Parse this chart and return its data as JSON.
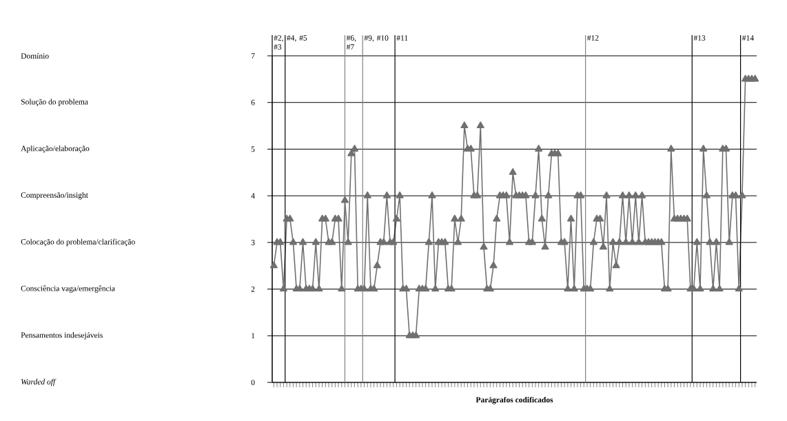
{
  "chart_data": {
    "type": "line",
    "xlabel": "Parágrafos codificados",
    "categories": [
      null,
      null,
      null,
      null,
      null,
      null,
      null,
      null,
      null,
      null,
      null,
      null,
      null,
      null,
      null,
      null,
      null,
      null,
      null,
      null,
      null,
      null,
      null,
      null,
      null,
      null,
      null,
      null,
      null,
      null,
      null,
      null,
      null,
      null,
      null,
      null,
      null,
      null,
      null,
      null,
      null,
      null,
      null,
      null,
      null,
      null,
      null,
      null,
      null,
      null,
      null,
      null,
      null,
      null,
      null,
      null,
      null,
      null,
      null,
      null,
      null,
      null,
      null,
      null,
      null,
      null,
      null,
      null,
      null,
      null,
      null,
      null,
      null,
      null,
      null,
      null,
      null,
      null,
      null,
      null,
      null,
      null,
      null,
      null,
      null,
      null,
      null,
      null,
      null,
      null,
      null,
      null,
      null,
      null,
      null,
      null,
      null,
      null,
      null,
      null,
      null,
      null,
      null,
      null,
      null,
      null,
      null,
      null,
      null,
      null,
      null,
      null,
      null,
      null,
      null,
      null,
      null,
      null,
      null,
      null,
      null,
      null,
      null,
      null,
      null,
      null,
      null,
      null,
      null,
      null,
      null,
      null,
      null,
      null,
      null,
      null,
      null,
      null,
      null,
      null,
      null,
      null,
      null,
      null,
      null,
      null,
      null,
      null,
      null,
      null
    ],
    "values": [
      2.5,
      3,
      3,
      2,
      3.5,
      3.5,
      3,
      2,
      2,
      3,
      2,
      2,
      2,
      3,
      2,
      3.5,
      3.5,
      3,
      3,
      3.5,
      3.5,
      2,
      3.9,
      3,
      4.9,
      5,
      2,
      2,
      2,
      4,
      2,
      2,
      2.5,
      3,
      3,
      4,
      3,
      3,
      3.5,
      4,
      2,
      2,
      1,
      1,
      1,
      2,
      2,
      2,
      3,
      4,
      2,
      3,
      3,
      3,
      2,
      2,
      3.5,
      3,
      3.5,
      5.5,
      5,
      5,
      4,
      4,
      5.5,
      2.9,
      2,
      2,
      2.5,
      3.5,
      4,
      4,
      4,
      3,
      4.5,
      4,
      4,
      4,
      4,
      3,
      3,
      4,
      5,
      3.5,
      2.9,
      4,
      4.9,
      4.9,
      4.9,
      3,
      3,
      2,
      3.5,
      2,
      4,
      4,
      2,
      2,
      2,
      3,
      3.5,
      3.5,
      2.9,
      4,
      2,
      3,
      2.5,
      3,
      4,
      3,
      4,
      3,
      4,
      3,
      4,
      3,
      3,
      3,
      3,
      3,
      3,
      2,
      2,
      5,
      3.5,
      3.5,
      3.5,
      3.5,
      3.5,
      2,
      2,
      3,
      2,
      5,
      4,
      3,
      2,
      3,
      2,
      5,
      5,
      3,
      4,
      4,
      2,
      4,
      6.5,
      6.5,
      6.5,
      6.5
    ],
    "color": "#707070",
    "marker": "triangle",
    "ylim": [
      0,
      7
    ],
    "yticks": [
      0,
      1,
      2,
      3,
      4,
      5,
      6,
      7
    ],
    "grid": "y",
    "annotations": [
      "Domínio",
      "Solução do problema",
      "Aplicação/elaboração",
      "Compreensão/insight",
      "Colocação do problema/clarificação",
      "Consciência vaga/emergência",
      "Pensamentos indesejáveis",
      "*Warded off*",
      "#2, #3",
      "#4, #5",
      "#6, #7",
      "#9, #10",
      "#11",
      "#12",
      "#13",
      "#14"
    ]
  }
}
